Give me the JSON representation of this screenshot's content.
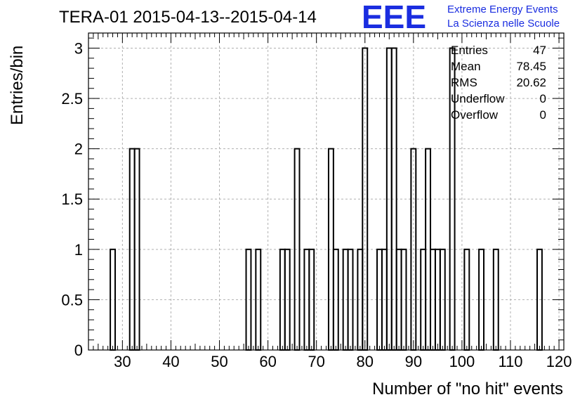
{
  "chart_data": {
    "type": "bar",
    "title": "TERA-01 2015-04-13--2015-04-14",
    "xlabel": "Number of \"no hit\" events",
    "ylabel": "Entries/bin",
    "xlim": [
      23,
      121
    ],
    "ylim": [
      0,
      3.15
    ],
    "x_ticks": [
      30,
      40,
      50,
      60,
      70,
      80,
      90,
      100,
      110,
      120
    ],
    "y_ticks": [
      0,
      0.5,
      1,
      1.5,
      2,
      2.5,
      3
    ],
    "bin_width": 1,
    "bins": [
      {
        "x": 28,
        "value": 1
      },
      {
        "x": 32,
        "value": 2
      },
      {
        "x": 33,
        "value": 2
      },
      {
        "x": 56,
        "value": 1
      },
      {
        "x": 58,
        "value": 1
      },
      {
        "x": 63,
        "value": 1
      },
      {
        "x": 64,
        "value": 1
      },
      {
        "x": 66,
        "value": 2
      },
      {
        "x": 68,
        "value": 1
      },
      {
        "x": 69,
        "value": 1
      },
      {
        "x": 73,
        "value": 2
      },
      {
        "x": 74,
        "value": 1
      },
      {
        "x": 76,
        "value": 1
      },
      {
        "x": 77,
        "value": 1
      },
      {
        "x": 79,
        "value": 1
      },
      {
        "x": 80,
        "value": 3
      },
      {
        "x": 83,
        "value": 1
      },
      {
        "x": 84,
        "value": 1
      },
      {
        "x": 85,
        "value": 3
      },
      {
        "x": 86,
        "value": 3
      },
      {
        "x": 87,
        "value": 1
      },
      {
        "x": 88,
        "value": 1
      },
      {
        "x": 90,
        "value": 2
      },
      {
        "x": 92,
        "value": 1
      },
      {
        "x": 93,
        "value": 2
      },
      {
        "x": 94,
        "value": 1
      },
      {
        "x": 95,
        "value": 1
      },
      {
        "x": 96,
        "value": 1
      },
      {
        "x": 98,
        "value": 3
      },
      {
        "x": 101,
        "value": 1
      },
      {
        "x": 104,
        "value": 1
      },
      {
        "x": 107,
        "value": 1
      },
      {
        "x": 116,
        "value": 1
      }
    ],
    "grid": true,
    "colors": {
      "line": "#000000",
      "grid": "#b0b0b0",
      "brand": "#1a2de0"
    }
  },
  "logo": {
    "text": "EEE",
    "line1": "Extreme Energy Events",
    "line2": "La Scienza nelle Scuole"
  },
  "stats": [
    {
      "label": "Entries",
      "value": "47"
    },
    {
      "label": "Mean",
      "value": "78.45"
    },
    {
      "label": "RMS",
      "value": "20.62"
    },
    {
      "label": "Underflow",
      "value": "0"
    },
    {
      "label": "Overflow",
      "value": "0"
    }
  ]
}
